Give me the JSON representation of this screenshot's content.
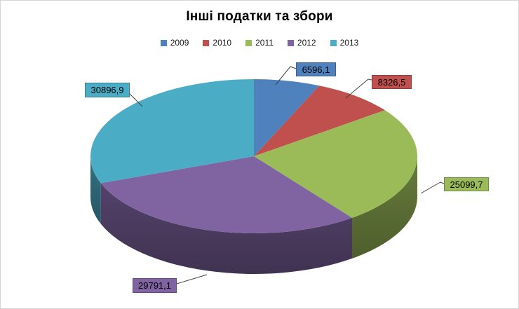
{
  "title": "Інші податки та збори",
  "legend": {
    "position": "top",
    "entries": [
      {
        "label": "2009",
        "color": "#4F81BD"
      },
      {
        "label": "2010",
        "color": "#C0504D"
      },
      {
        "label": "2011",
        "color": "#9BBB59"
      },
      {
        "label": "2012",
        "color": "#8064A2"
      },
      {
        "label": "2013",
        "color": "#4BACC6"
      }
    ]
  },
  "chart_data": {
    "type": "pie",
    "style": "3d",
    "title": "Інші податки та збори",
    "categories": [
      "2009",
      "2010",
      "2011",
      "2012",
      "2013"
    ],
    "values": [
      6596.1,
      8326.5,
      25099.7,
      29791.1,
      30896.9
    ],
    "data_labels": [
      "6596,1",
      "8326,5",
      "25099,7",
      "29791,1",
      "30896,9"
    ],
    "colors": [
      "#4F81BD",
      "#C0504D",
      "#9BBB59",
      "#8064A2",
      "#4BACC6"
    ],
    "legend_position": "top",
    "start_angle_deg": 0,
    "direction": "clockwise"
  }
}
